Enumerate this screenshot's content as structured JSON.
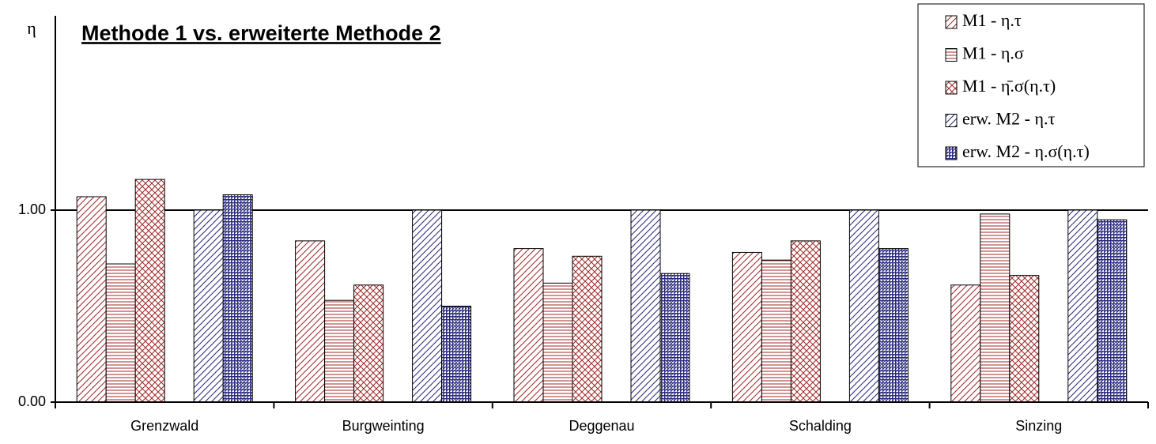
{
  "chart_data": {
    "type": "bar",
    "title": "Methode 1 vs. erweiterte Methode 2",
    "y_label": "η",
    "categories": [
      "Grenzwald",
      "Burgweinting",
      "Deggenau",
      "Schalding",
      "Sinzing"
    ],
    "series": [
      {
        "name": "M1 - η.τ",
        "color": "#a02828",
        "hatch": "diagonal",
        "values": [
          1.07,
          0.84,
          0.8,
          0.78,
          0.61
        ]
      },
      {
        "name": "M1 - η.σ",
        "color": "#a02828",
        "hatch": "horizontal",
        "values": [
          0.72,
          0.53,
          0.62,
          0.74,
          0.98
        ]
      },
      {
        "name": "M1 - η̄.σ(η.τ)",
        "color": "#a02828",
        "hatch": "crosshatch",
        "values": [
          1.16,
          0.61,
          0.76,
          0.84,
          0.66
        ]
      },
      {
        "name": "erw. M2 - η.τ",
        "color": "#28287a",
        "hatch": "diagonal",
        "values": [
          1.0,
          1.0,
          1.0,
          1.0,
          1.0
        ]
      },
      {
        "name": "erw. M2 - η.σ(η.τ)",
        "color": "#28287a",
        "hatch": "grid",
        "values": [
          1.08,
          0.5,
          0.67,
          0.8,
          0.95
        ]
      }
    ],
    "ylim": [
      0,
      2
    ],
    "yticks": [
      {
        "value": 0,
        "label": "0.00"
      },
      {
        "value": 1,
        "label": "1.00"
      }
    ],
    "grid": true,
    "legend": "top-right"
  }
}
